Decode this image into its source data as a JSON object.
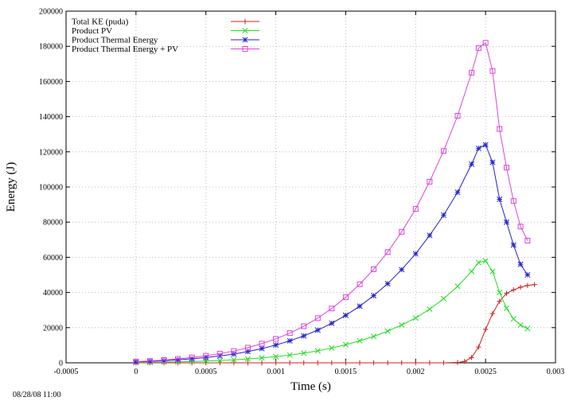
{
  "chart_data": {
    "type": "line",
    "title": "",
    "xlabel": "Time (s)",
    "ylabel": "Energy (J)",
    "xlim": [
      -0.0005,
      0.003
    ],
    "ylim": [
      0,
      200000
    ],
    "xticks": [
      -0.0005,
      0,
      0.0005,
      0.001,
      0.0015,
      0.002,
      0.0025,
      0.003
    ],
    "xtick_labels": [
      "-0.0005",
      "0",
      "0.0005",
      "0.001",
      "0.0015",
      "0.002",
      "0.0025",
      "0.003"
    ],
    "yticks": [
      0,
      20000,
      40000,
      60000,
      80000,
      100000,
      120000,
      140000,
      160000,
      180000,
      200000
    ],
    "ytick_labels": [
      "0",
      "20000",
      "40000",
      "60000",
      "80000",
      "100000",
      "120000",
      "140000",
      "160000",
      "180000",
      "200000"
    ],
    "grid": true,
    "legend_position": "top-left",
    "timestamp": "08/28/08 11:00",
    "series": [
      {
        "name": "Total KE (puda)",
        "color": "#cc2222",
        "marker": "plus",
        "x": [
          0,
          0.0001,
          0.0002,
          0.0003,
          0.0004,
          0.0005,
          0.0006,
          0.0007,
          0.0008,
          0.0009,
          0.001,
          0.0011,
          0.0012,
          0.0013,
          0.0014,
          0.0015,
          0.0016,
          0.0017,
          0.0018,
          0.0019,
          0.002,
          0.0021,
          0.0022,
          0.0023,
          0.00235,
          0.0024,
          0.00245,
          0.0025,
          0.00255,
          0.0026,
          0.00265,
          0.0027,
          0.00275,
          0.0028,
          0.00285
        ],
        "y": [
          0,
          0,
          0,
          0,
          0,
          0,
          0,
          0,
          0,
          0,
          0,
          0,
          0,
          0,
          0,
          0,
          0,
          0,
          0,
          0,
          0,
          0,
          0,
          200,
          800,
          3000,
          9000,
          19000,
          28000,
          35000,
          39500,
          41500,
          43000,
          44000,
          44500
        ]
      },
      {
        "name": "Product PV",
        "color": "#22dd22",
        "marker": "cross",
        "x": [
          0,
          0.0001,
          0.0002,
          0.0003,
          0.0004,
          0.0005,
          0.0006,
          0.0007,
          0.0008,
          0.0009,
          0.001,
          0.0011,
          0.0012,
          0.0013,
          0.0014,
          0.0015,
          0.0016,
          0.0017,
          0.0018,
          0.0019,
          0.002,
          0.0021,
          0.0022,
          0.0023,
          0.0024,
          0.00245,
          0.0025,
          0.00255,
          0.0026,
          0.00265,
          0.0027,
          0.00275,
          0.0028
        ],
        "y": [
          150,
          250,
          400,
          550,
          750,
          1000,
          1300,
          1700,
          2200,
          2800,
          3500,
          4400,
          5500,
          6800,
          8400,
          10300,
          12500,
          15000,
          18000,
          21500,
          25500,
          30500,
          36500,
          43500,
          52000,
          57000,
          58000,
          52000,
          40000,
          31000,
          25000,
          21500,
          19500
        ]
      },
      {
        "name": "Product Thermal Energy",
        "color": "#2222cc",
        "marker": "star",
        "x": [
          0,
          0.0001,
          0.0002,
          0.0003,
          0.0004,
          0.0005,
          0.0006,
          0.0007,
          0.0008,
          0.0009,
          0.001,
          0.0011,
          0.0012,
          0.0013,
          0.0014,
          0.0015,
          0.0016,
          0.0017,
          0.0018,
          0.0019,
          0.002,
          0.0021,
          0.0022,
          0.0023,
          0.0024,
          0.00245,
          0.0025,
          0.00255,
          0.0026,
          0.00265,
          0.0027,
          0.00275,
          0.0028
        ],
        "y": [
          500,
          800,
          1200,
          1700,
          2300,
          3000,
          3900,
          5000,
          6400,
          8100,
          10100,
          12500,
          15300,
          18600,
          22500,
          27000,
          32200,
          38200,
          45000,
          53000,
          62000,
          72500,
          84000,
          97000,
          113000,
          122000,
          124000,
          114000,
          93000,
          80000,
          67000,
          56000,
          50000
        ]
      },
      {
        "name": "Product Thermal Energy + PV",
        "color": "#dd44dd",
        "marker": "square",
        "x": [
          0,
          0.0001,
          0.0002,
          0.0003,
          0.0004,
          0.0005,
          0.0006,
          0.0007,
          0.0008,
          0.0009,
          0.001,
          0.0011,
          0.0012,
          0.0013,
          0.0014,
          0.0015,
          0.0016,
          0.0017,
          0.0018,
          0.0019,
          0.002,
          0.0021,
          0.0022,
          0.0023,
          0.0024,
          0.00245,
          0.0025,
          0.00255,
          0.0026,
          0.00265,
          0.0027,
          0.00275,
          0.0028
        ],
        "y": [
          650,
          1050,
          1600,
          2250,
          3050,
          4000,
          5200,
          6700,
          8600,
          10900,
          13600,
          16900,
          20800,
          25400,
          30900,
          37300,
          44700,
          53200,
          63000,
          74500,
          87500,
          103000,
          120500,
          140500,
          165000,
          179000,
          182000,
          166000,
          133000,
          111000,
          92000,
          77500,
          69500
        ]
      }
    ]
  }
}
